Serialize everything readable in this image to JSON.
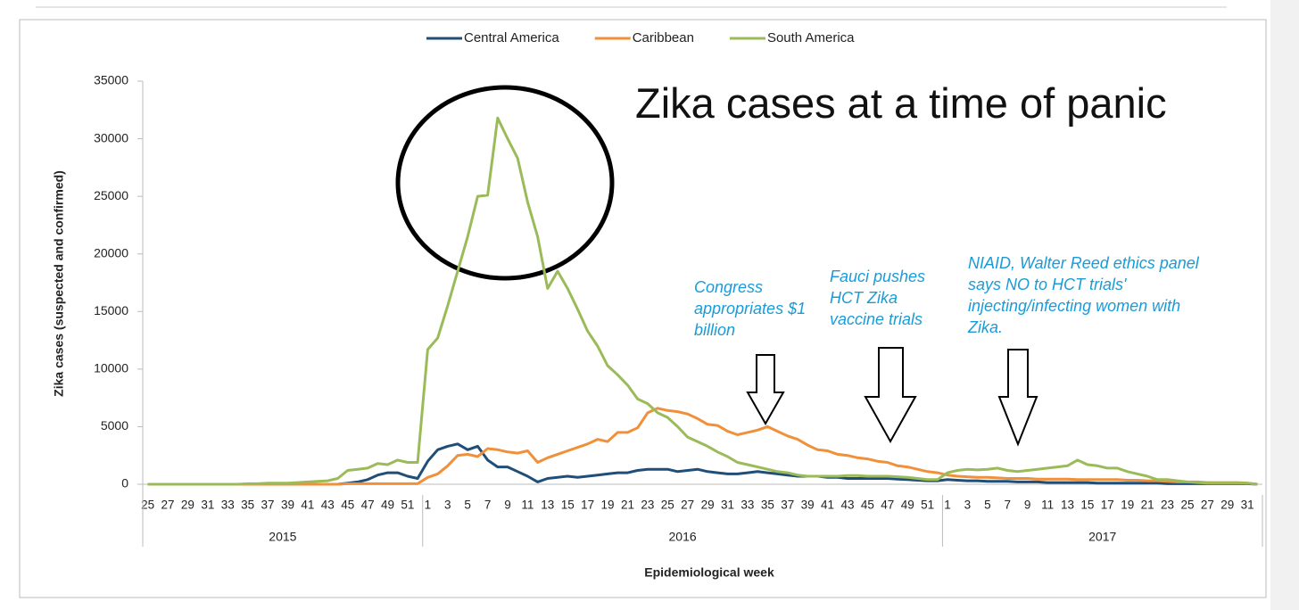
{
  "chart_data": {
    "type": "line",
    "title": "Zika cases at a time of panic",
    "y_label": "Zika cases (suspected and confirmed)",
    "x_label": "Epidemiological week",
    "annotations": [
      "Congress appropriates $1 billion",
      "Fauci pushes HCT Zika vaccine trials",
      "NIAID, Walter Reed ethics panel says NO to HCT trials' injecting/infecting women with Zika."
    ],
    "groups": [
      "2015",
      "2016",
      "2017"
    ],
    "categories": [
      "25",
      null,
      "27",
      null,
      "29",
      null,
      "31",
      null,
      "33",
      null,
      "35",
      null,
      "37",
      null,
      "39",
      null,
      "41",
      null,
      "43",
      null,
      "45",
      null,
      "47",
      null,
      "49",
      null,
      "51",
      null,
      "1",
      null,
      "3",
      null,
      "5",
      null,
      "7",
      null,
      "9",
      null,
      "11",
      null,
      "13",
      null,
      "15",
      null,
      "17",
      null,
      "19",
      null,
      "21",
      null,
      "23",
      null,
      "25",
      null,
      "27",
      null,
      "29",
      null,
      "31",
      null,
      "33",
      null,
      "35",
      null,
      "37",
      null,
      "39",
      null,
      "41",
      null,
      "43",
      null,
      "45",
      null,
      "47",
      null,
      "49",
      null,
      "51",
      null,
      "1",
      null,
      "3",
      null,
      "5",
      null,
      "7",
      null,
      "9",
      null,
      "11",
      null,
      "13",
      null,
      "15",
      null,
      "17",
      null,
      "19",
      null,
      "21",
      null,
      "23",
      null,
      "25",
      null,
      "27",
      null,
      "29",
      null,
      "31",
      null
    ],
    "series": [
      {
        "name": "Central America",
        "color": "#1f4e79",
        "values": [
          0,
          0,
          0,
          0,
          0,
          0,
          0,
          0,
          0,
          0,
          0,
          0,
          0,
          0,
          0,
          0,
          0,
          0,
          0,
          0,
          100,
          200,
          400,
          800,
          1000,
          1000,
          700,
          500,
          2000,
          3000,
          3300,
          3500,
          3000,
          3300,
          2100,
          1500,
          1500,
          1100,
          700,
          200,
          500,
          600,
          700,
          600,
          700,
          800,
          900,
          1000,
          1000,
          1200,
          1300,
          1300,
          1300,
          1100,
          1200,
          1300,
          1100,
          1000,
          900,
          900,
          1000,
          1100,
          1000,
          900,
          800,
          700,
          700,
          700,
          600,
          600,
          500,
          500,
          500,
          500,
          500,
          450,
          400,
          350,
          300,
          300,
          400,
          350,
          300,
          300,
          250,
          250,
          250,
          200,
          200,
          200,
          150,
          150,
          150,
          150,
          150,
          100,
          100,
          100,
          100,
          100,
          100,
          100,
          50,
          50,
          50,
          50,
          50,
          50,
          50,
          50,
          50,
          0
        ]
      },
      {
        "name": "Caribbean",
        "color": "#f0903a",
        "values": [
          0,
          0,
          0,
          0,
          0,
          0,
          0,
          0,
          0,
          0,
          0,
          0,
          0,
          0,
          0,
          0,
          0,
          0,
          0,
          0,
          50,
          50,
          50,
          50,
          50,
          50,
          50,
          50,
          600,
          900,
          1600,
          2500,
          2600,
          2400,
          3100,
          3000,
          2800,
          2700,
          2900,
          1900,
          2300,
          2600,
          2900,
          3200,
          3500,
          3900,
          3700,
          4500,
          4500,
          4900,
          6200,
          6600,
          6400,
          6300,
          6100,
          5700,
          5200,
          5100,
          4600,
          4300,
          4500,
          4700,
          5000,
          4600,
          4200,
          3900,
          3400,
          3000,
          2900,
          2600,
          2500,
          2300,
          2200,
          2000,
          1900,
          1600,
          1500,
          1300,
          1100,
          1000,
          800,
          700,
          650,
          600,
          600,
          550,
          500,
          500,
          500,
          450,
          450,
          450,
          450,
          400,
          400,
          400,
          400,
          400,
          350,
          350,
          300,
          300,
          250,
          200,
          200,
          200,
          150,
          150,
          150,
          150,
          100,
          0
        ]
      },
      {
        "name": "South America",
        "color": "#9bbb59",
        "values": [
          0,
          0,
          0,
          0,
          0,
          0,
          0,
          0,
          0,
          0,
          50,
          50,
          100,
          100,
          100,
          150,
          200,
          250,
          300,
          500,
          1200,
          1300,
          1400,
          1800,
          1700,
          2100,
          1900,
          1900,
          11700,
          12700,
          15500,
          18500,
          21500,
          25000,
          25100,
          31800,
          30000,
          28300,
          24500,
          21500,
          17000,
          18500,
          17000,
          15200,
          13300,
          12000,
          10300,
          9500,
          8600,
          7400,
          7000,
          6200,
          5800,
          5000,
          4100,
          3700,
          3300,
          2800,
          2400,
          1900,
          1700,
          1500,
          1300,
          1100,
          1000,
          800,
          700,
          700,
          700,
          700,
          750,
          750,
          700,
          700,
          700,
          650,
          600,
          500,
          400,
          400,
          1000,
          1200,
          1300,
          1250,
          1300,
          1400,
          1200,
          1100,
          1200,
          1300,
          1400,
          1500,
          1600,
          2100,
          1700,
          1600,
          1400,
          1400,
          1100,
          900,
          700,
          400,
          400,
          300,
          200,
          150,
          100,
          100,
          100,
          100,
          100,
          0
        ]
      }
    ],
    "ylim": [
      0,
      35000
    ],
    "yticks": [
      0,
      5000,
      10000,
      15000,
      20000,
      25000,
      30000,
      35000
    ],
    "grid": false
  }
}
